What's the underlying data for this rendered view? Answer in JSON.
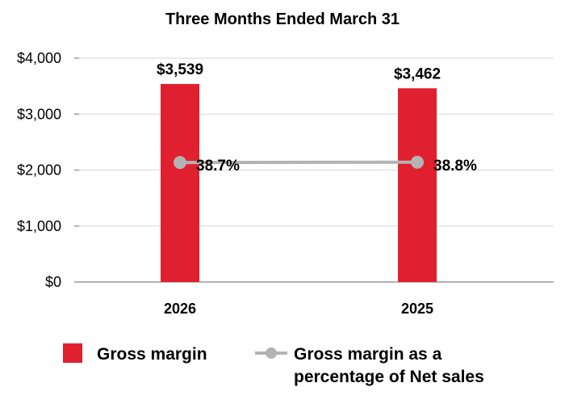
{
  "chart_data": {
    "type": "bar",
    "title": "Three Months Ended March 31",
    "categories": [
      "2026",
      "2025"
    ],
    "yticks": [
      "$0",
      "$1,000",
      "$2,000",
      "$3,000",
      "$4,000"
    ],
    "ylim": [
      0,
      4000
    ],
    "grid": true,
    "legend_position": "bottom",
    "series": [
      {
        "name": "Gross margin",
        "kind": "bar",
        "values": [
          3539,
          3462
        ],
        "labels": [
          "$3,539",
          "$3,462"
        ],
        "color": "#e0202e"
      },
      {
        "name_lines": [
          "Gross margin as a",
          "percentage of Net sales"
        ],
        "kind": "line",
        "values": [
          38.7,
          38.8
        ],
        "labels": [
          "38.7%",
          "38.8%"
        ],
        "color": "#b3b3b3"
      }
    ]
  }
}
